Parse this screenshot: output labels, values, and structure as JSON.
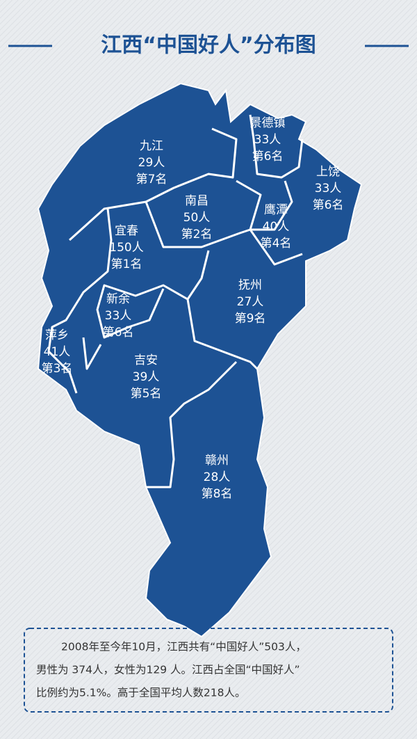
{
  "header": {
    "title": "江西“中国好人”分布图"
  },
  "regions": [
    {
      "name": "九江",
      "count": "29人",
      "rank": "第7名"
    },
    {
      "name": "景德镇",
      "count": "33人",
      "rank": "第6名"
    },
    {
      "name": "上饶",
      "count": "33人",
      "rank": "第6名"
    },
    {
      "name": "南昌",
      "count": "50人",
      "rank": "第2名"
    },
    {
      "name": "鹰潭",
      "count": "40人",
      "rank": "第4名"
    },
    {
      "name": "宜春",
      "count": "150人",
      "rank": "第1名"
    },
    {
      "name": "抚州",
      "count": "27人",
      "rank": "第9名"
    },
    {
      "name": "新余",
      "count": "33人",
      "rank": "第6名"
    },
    {
      "name": "萍乡",
      "count": "41人",
      "rank": "第3名"
    },
    {
      "name": "吉安",
      "count": "39人",
      "rank": "第5名"
    },
    {
      "name": "赣州",
      "count": "28人",
      "rank": "第8名"
    }
  ],
  "note": {
    "lines": [
      "2008年至今年10月，江西共有“中国好人”503人，",
      "男性为 374人，女性为129 人。江西占全国“中国好人”",
      "比例约为5.1%。高于全国平均人数218人。"
    ]
  }
}
